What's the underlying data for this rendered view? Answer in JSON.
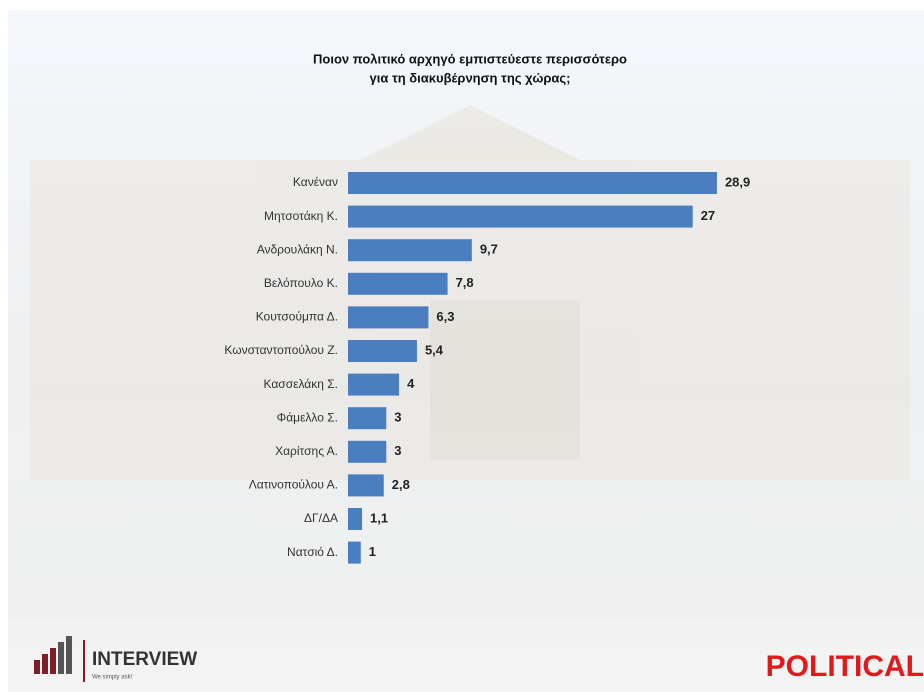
{
  "chart_data": {
    "type": "hbar",
    "title": [
      "Ποιον πολιτικό αρχηγό εμπιστεύεστε περισσότερο",
      "για τη διακυβέρνηση της χώρας;"
    ],
    "categories": [
      "Κανέναν",
      "Μητσοτάκη Κ.",
      "Ανδρουλάκη Ν.",
      "Βελόπουλο Κ.",
      "Κουτσούμπα Δ.",
      "Κωνσταντοπούλου Ζ.",
      "Κασσελάκη Σ.",
      "Φάμελλο Σ.",
      "Χαρίτσης Α.",
      "Λατινοπούλου Α.",
      "ΔΓ/ΔΑ",
      "Νατσιό Δ."
    ],
    "values": [
      28.9,
      27,
      9.7,
      7.8,
      6.3,
      5.4,
      4,
      3,
      3,
      2.8,
      1.1,
      1
    ],
    "value_labels": [
      "28,9",
      "27",
      "9,7",
      "7,8",
      "6,3",
      "5,4",
      "4",
      "3",
      "3",
      "2,8",
      "1,1",
      "1"
    ],
    "color": "#4a7ec0",
    "xlim": [
      0,
      30
    ]
  },
  "logos": {
    "interview": "INTERVIEW",
    "tagline": "We simply ask!",
    "political": "POLITICAL"
  }
}
